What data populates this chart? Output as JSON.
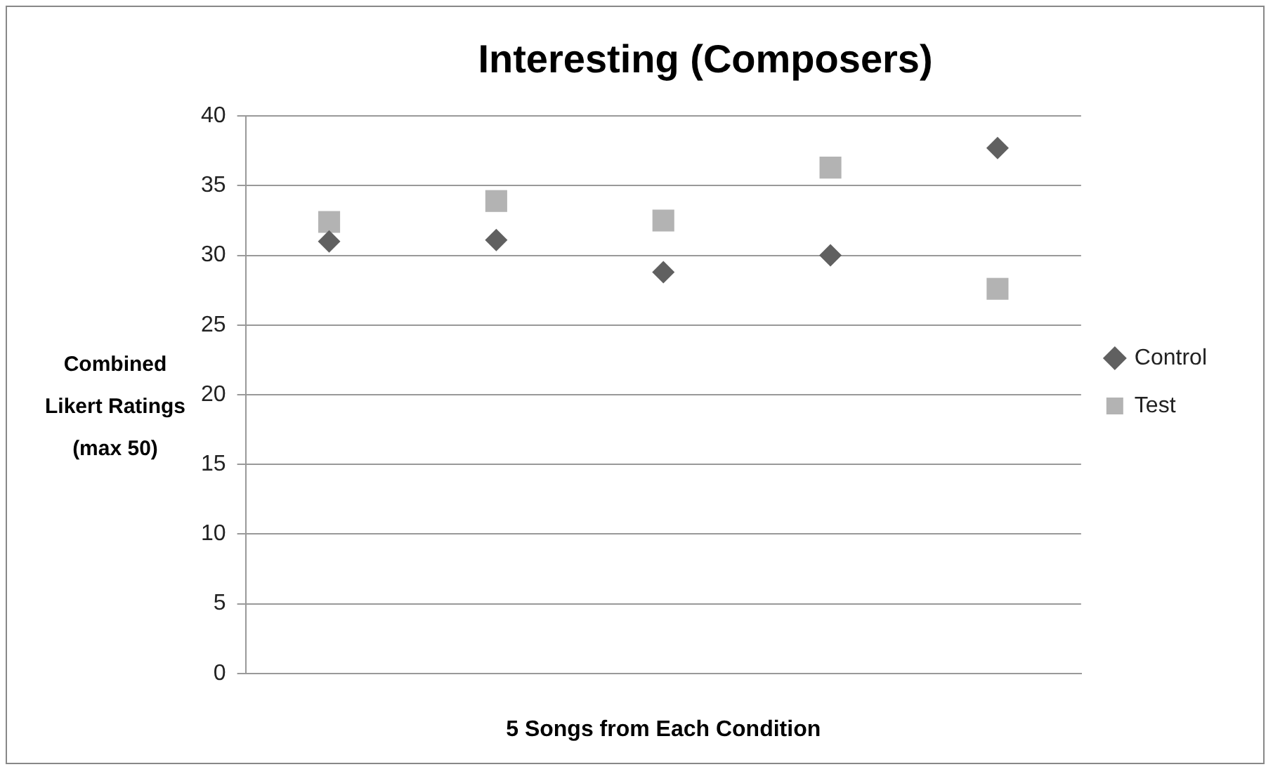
{
  "chart_data": {
    "type": "scatter",
    "title": "Interesting (Composers)",
    "xlabel": "5 Songs from Each Condition",
    "ylabel": "Combined Likert Ratings (max 50)",
    "categories": [
      null,
      null,
      null,
      null,
      null
    ],
    "ylim": [
      0,
      40
    ],
    "yticks": [
      0,
      5,
      10,
      15,
      20,
      25,
      30,
      35,
      40
    ],
    "grid": "y",
    "legend": "right",
    "series": [
      {
        "name": "Control",
        "color": "#606060",
        "marker": "diamond",
        "values": [
          31.0,
          31.1,
          28.8,
          30.0,
          37.7
        ]
      },
      {
        "name": "Test",
        "color": "#b3b3b3",
        "marker": "square",
        "values": [
          32.4,
          33.9,
          32.5,
          36.3,
          27.6
        ]
      }
    ]
  }
}
